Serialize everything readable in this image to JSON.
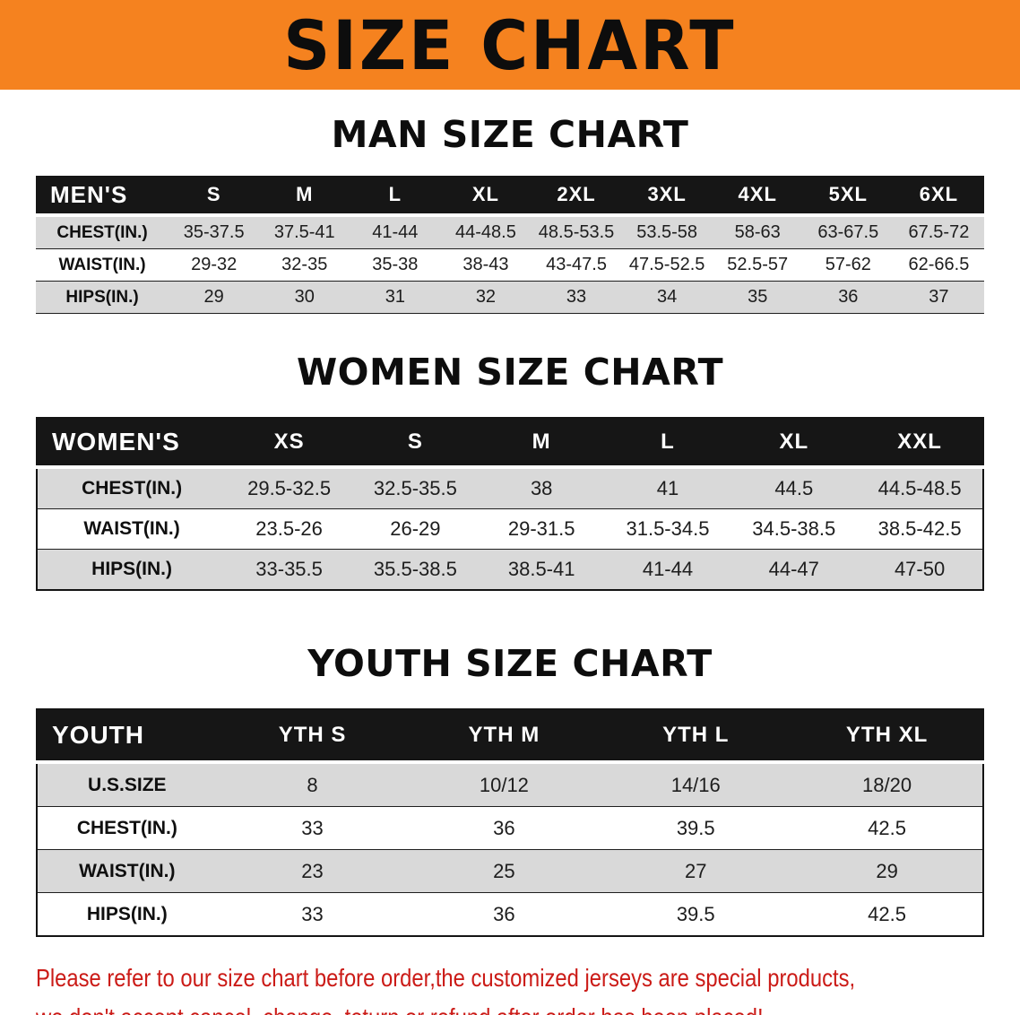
{
  "banner": {
    "title": "SIZE CHART"
  },
  "chart_data": [
    {
      "type": "table",
      "title": "MAN SIZE CHART",
      "header": [
        "MEN'S",
        "S",
        "M",
        "L",
        "XL",
        "2XL",
        "3XL",
        "4XL",
        "5XL",
        "6XL"
      ],
      "rows": [
        [
          "CHEST(IN.)",
          "35-37.5",
          "37.5-41",
          "41-44",
          "44-48.5",
          "48.5-53.5",
          "53.5-58",
          "58-63",
          "63-67.5",
          "67.5-72"
        ],
        [
          "WAIST(IN.)",
          "29-32",
          "32-35",
          "35-38",
          "38-43",
          "43-47.5",
          "47.5-52.5",
          "52.5-57",
          "57-62",
          "62-66.5"
        ],
        [
          "HIPS(IN.)",
          "29",
          "30",
          "31",
          "32",
          "33",
          "34",
          "35",
          "36",
          "37"
        ]
      ]
    },
    {
      "type": "table",
      "title": "WOMEN SIZE CHART",
      "header": [
        "WOMEN'S",
        "XS",
        "S",
        "M",
        "L",
        "XL",
        "XXL"
      ],
      "rows": [
        [
          "CHEST(IN.)",
          "29.5-32.5",
          "32.5-35.5",
          "38",
          "41",
          "44.5",
          "44.5-48.5"
        ],
        [
          "WAIST(IN.)",
          "23.5-26",
          "26-29",
          "29-31.5",
          "31.5-34.5",
          "34.5-38.5",
          "38.5-42.5"
        ],
        [
          "HIPS(IN.)",
          "33-35.5",
          "35.5-38.5",
          "38.5-41",
          "41-44",
          "44-47",
          "47-50"
        ]
      ]
    },
    {
      "type": "table",
      "title": "YOUTH SIZE CHART",
      "header": [
        "YOUTH",
        "YTH S",
        "YTH M",
        "YTH L",
        "YTH XL"
      ],
      "rows": [
        [
          "U.S.SIZE",
          "8",
          "10/12",
          "14/16",
          "18/20"
        ],
        [
          "CHEST(IN.)",
          "33",
          "36",
          "39.5",
          "42.5"
        ],
        [
          "WAIST(IN.)",
          "23",
          "25",
          "27",
          "29"
        ],
        [
          "HIPS(IN.)",
          "33",
          "36",
          "39.5",
          "42.5"
        ]
      ]
    }
  ],
  "footer": {
    "line1": "Please refer to our size chart before order,the customized jerseys are special products,",
    "line2": "we don't accept cancel, change, teturn or refund after order has been placed!"
  },
  "colors": {
    "banner": "#f5821f",
    "table_header": "#161616",
    "stripe": "#d9d9d9",
    "line": "#1f1f1f",
    "footer_red": "#cb1b17"
  }
}
